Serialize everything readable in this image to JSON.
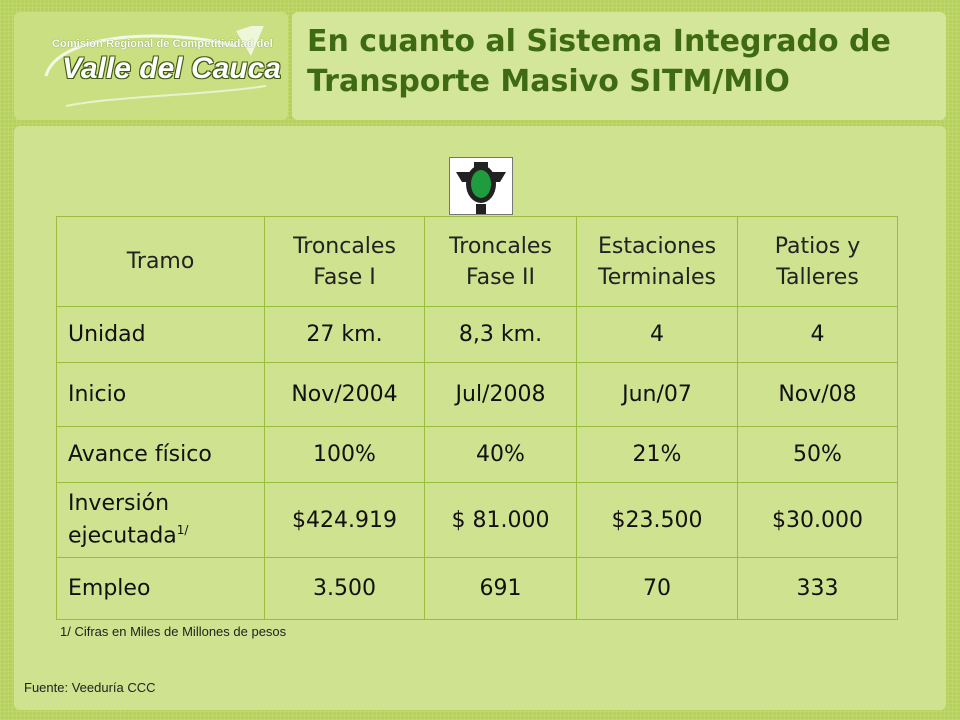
{
  "logo": {
    "subtitle": "Comisión Regional de Competitividad del",
    "name": "Valle del Cauca"
  },
  "title": "En cuanto al Sistema Integrado de Transporte Masivo SITM/MIO",
  "icon": "traffic-light-green-icon",
  "colors": {
    "title": "#3f6a14",
    "background": "#b6d15c",
    "grid": "#9abd3c"
  },
  "table": {
    "headers": [
      "Tramo",
      "Troncales Fase I",
      "Troncales Fase II",
      "Estaciones Terminales",
      "Patios y Talleres"
    ],
    "rows": [
      {
        "label": "Unidad",
        "values": [
          "27 km.",
          "8,3 km.",
          "4",
          "4"
        ]
      },
      {
        "label": "Inicio",
        "values": [
          "Nov/2004",
          "Jul/2008",
          "Jun/07",
          "Nov/08"
        ]
      },
      {
        "label": "Avance físico",
        "values": [
          "100%",
          "40%",
          "21%",
          "50%"
        ]
      },
      {
        "label": "Inversión ejecutada",
        "label_note": "1/",
        "values": [
          "$424.919",
          "$ 81.000",
          "$23.500",
          "$30.000"
        ]
      },
      {
        "label": "Empleo",
        "values": [
          "3.500",
          "691",
          "70",
          "333"
        ]
      }
    ]
  },
  "footnote": "1/ Cifras en Miles de Millones de pesos",
  "source": "Fuente: Veeduría CCC"
}
